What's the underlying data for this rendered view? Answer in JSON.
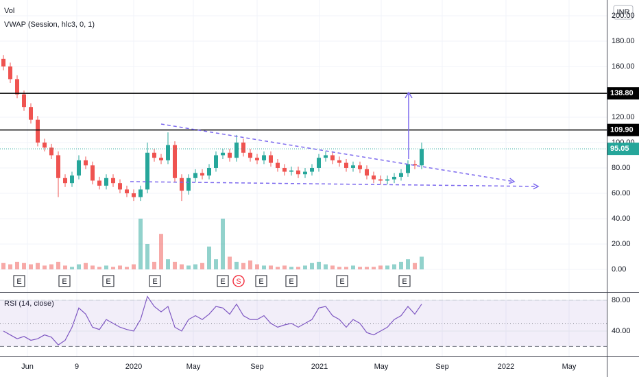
{
  "chart_data": {
    "type": "candlestick",
    "legend": [
      "Vol",
      "VWAP (Session, hlc3, 0, 1)"
    ],
    "currency": "INR",
    "xlim": [
      -0.5,
      88
    ],
    "xticks": [
      {
        "value": 3.5,
        "label": "Jun"
      },
      {
        "value": 10.7,
        "label": "9"
      },
      {
        "value": 19,
        "label": "2020"
      },
      {
        "value": 27.7,
        "label": "May"
      },
      {
        "value": 37,
        "label": "Sep"
      },
      {
        "value": 46.1,
        "label": "2021"
      },
      {
        "value": 55.1,
        "label": "May"
      },
      {
        "value": 64,
        "label": "Sep"
      },
      {
        "value": 73.3,
        "label": "2022"
      },
      {
        "value": 82.5,
        "label": "May"
      }
    ],
    "ylim": [
      -17.3,
      212.4
    ],
    "yticks": [
      {
        "value": 200,
        "label": "200.00"
      },
      {
        "value": 180,
        "label": "180.00"
      },
      {
        "value": 160,
        "label": "160.00"
      },
      {
        "value": 120,
        "label": "120.00"
      },
      {
        "value": 100,
        "label": "100.00"
      },
      {
        "value": 80,
        "label": "80.00"
      },
      {
        "value": 60,
        "label": "60.00"
      },
      {
        "value": 40,
        "label": "40.00"
      },
      {
        "value": 20,
        "label": "20.00"
      },
      {
        "value": 0,
        "label": "0.00"
      }
    ],
    "grid": true,
    "up_color": "#26a69a",
    "down_color": "#ef5350",
    "open": [
      166,
      160,
      150,
      138,
      128,
      118,
      100,
      96,
      90,
      72,
      68,
      74,
      86,
      82,
      70,
      66,
      72,
      68,
      63,
      60,
      57,
      63,
      92,
      88,
      86,
      98,
      72,
      62,
      72,
      76,
      74,
      80,
      90,
      92,
      88,
      100,
      92,
      88,
      86,
      90,
      84,
      80,
      77,
      78,
      75,
      77,
      80,
      88,
      90,
      86,
      84,
      80,
      82,
      79,
      74,
      71,
      70,
      71,
      73,
      76,
      83,
      82
    ],
    "high": [
      169,
      163,
      153,
      141,
      131,
      121,
      103,
      99,
      93,
      75,
      77,
      90,
      89,
      85,
      73,
      75,
      75,
      71,
      66,
      63,
      66,
      100,
      95,
      91,
      108,
      101,
      75,
      75,
      79,
      79,
      83,
      93,
      95,
      95,
      106,
      103,
      95,
      91,
      93,
      93,
      87,
      83,
      81,
      81,
      80,
      83,
      91,
      93,
      93,
      89,
      87,
      85,
      85,
      82,
      77,
      74,
      74,
      76,
      79,
      86,
      86,
      100
    ],
    "low": [
      157,
      147,
      135,
      125,
      115,
      97,
      93,
      87,
      57,
      65,
      65,
      71,
      79,
      67,
      63,
      63,
      65,
      60,
      57,
      54,
      54,
      60,
      85,
      83,
      83,
      69,
      54,
      59,
      69,
      71,
      71,
      77,
      87,
      85,
      85,
      89,
      85,
      83,
      83,
      81,
      77,
      74,
      74,
      72,
      72,
      74,
      77,
      85,
      83,
      81,
      77,
      77,
      76,
      71,
      68,
      67,
      67,
      68,
      70,
      73,
      79,
      79
    ],
    "close": [
      160,
      150,
      138,
      128,
      118,
      100,
      96,
      90,
      72,
      68,
      74,
      86,
      82,
      70,
      66,
      72,
      68,
      63,
      60,
      57,
      63,
      92,
      88,
      86,
      98,
      72,
      62,
      72,
      76,
      74,
      80,
      90,
      92,
      88,
      100,
      92,
      88,
      86,
      90,
      84,
      80,
      77,
      78,
      75,
      77,
      80,
      88,
      90,
      86,
      84,
      80,
      82,
      79,
      74,
      71,
      70,
      71,
      73,
      76,
      83,
      82,
      95
    ],
    "volume": [
      5,
      4,
      6,
      5,
      4,
      5,
      3,
      4,
      6,
      3,
      2,
      4,
      5,
      3,
      2,
      3,
      2,
      3,
      2,
      4,
      40,
      20,
      6,
      28,
      8,
      6,
      4,
      3,
      4,
      5,
      18,
      8,
      40,
      10,
      6,
      5,
      7,
      4,
      3,
      3,
      2,
      3,
      2,
      2,
      3,
      5,
      6,
      4,
      3,
      2,
      2,
      3,
      2,
      2,
      2,
      3,
      3,
      4,
      6,
      8,
      5,
      10
    ],
    "hlines": [
      {
        "value": 138.8,
        "label": "138.80"
      },
      {
        "value": 109.9,
        "label": "109.90"
      }
    ],
    "last_price": {
      "value": 95.05,
      "label": "95.05",
      "color": "#26a69a"
    },
    "drawing_color": "#7b68ee",
    "trendlines": [
      {
        "x": [
          23,
          74.5
        ],
        "y": [
          114.6,
          69.2
        ]
      },
      {
        "x": [
          18.5,
          78
        ],
        "y": [
          69.2,
          65.4
        ]
      }
    ],
    "arrow": {
      "x": 59.1,
      "y": [
        87,
        139.5
      ]
    },
    "events": [
      {
        "label": "E",
        "x": 2.3
      },
      {
        "label": "E",
        "x": 8.9
      },
      {
        "label": "E",
        "x": 15.3
      },
      {
        "label": "E",
        "x": 22.1
      },
      {
        "label": "E",
        "x": 32
      },
      {
        "label": "S",
        "x": 34.3
      },
      {
        "label": "E",
        "x": 37.6
      },
      {
        "label": "E",
        "x": 42
      },
      {
        "label": "E",
        "x": 49.4
      },
      {
        "label": "E",
        "x": 58.5
      }
    ],
    "rsi": {
      "title": "RSI (14, close)",
      "color": "#7e57c2",
      "values": [
        40,
        35,
        30,
        33,
        28,
        30,
        35,
        32,
        22,
        28,
        45,
        70,
        62,
        45,
        42,
        55,
        50,
        45,
        42,
        40,
        55,
        85,
        72,
        65,
        72,
        45,
        40,
        55,
        60,
        55,
        62,
        72,
        70,
        62,
        75,
        60,
        55,
        55,
        60,
        50,
        45,
        48,
        50,
        45,
        50,
        55,
        70,
        72,
        60,
        55,
        45,
        55,
        50,
        38,
        35,
        40,
        45,
        55,
        60,
        72,
        62,
        75
      ],
      "ylim": [
        7,
        89
      ],
      "yticks": [
        {
          "value": 80,
          "label": "80.00"
        },
        {
          "value": 40,
          "label": "40.00"
        }
      ],
      "bands": [
        20,
        80
      ],
      "mid": 50
    }
  }
}
